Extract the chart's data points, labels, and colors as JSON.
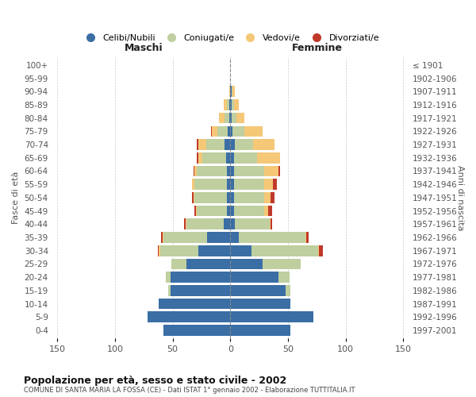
{
  "age_groups": [
    "100+",
    "95-99",
    "90-94",
    "85-89",
    "80-84",
    "75-79",
    "70-74",
    "65-69",
    "60-64",
    "55-59",
    "50-54",
    "45-49",
    "40-44",
    "35-39",
    "30-34",
    "25-29",
    "20-24",
    "15-19",
    "10-14",
    "5-9",
    "0-4"
  ],
  "birth_years": [
    "≤ 1901",
    "1902-1906",
    "1907-1911",
    "1912-1916",
    "1917-1921",
    "1922-1926",
    "1927-1931",
    "1932-1936",
    "1937-1941",
    "1942-1946",
    "1947-1951",
    "1952-1956",
    "1957-1961",
    "1962-1966",
    "1967-1971",
    "1972-1976",
    "1977-1981",
    "1982-1986",
    "1987-1991",
    "1992-1996",
    "1997-2001"
  ],
  "maschi_celibi": [
    0,
    0,
    0,
    1,
    1,
    2,
    5,
    4,
    3,
    3,
    3,
    3,
    6,
    20,
    28,
    38,
    52,
    52,
    62,
    72,
    58
  ],
  "maschi_coniugati": [
    0,
    0,
    0,
    2,
    4,
    9,
    16,
    20,
    26,
    28,
    28,
    26,
    32,
    38,
    33,
    13,
    4,
    2,
    0,
    0,
    0
  ],
  "maschi_vedovi": [
    0,
    0,
    1,
    3,
    5,
    5,
    7,
    4,
    2,
    2,
    1,
    1,
    1,
    1,
    1,
    0,
    0,
    0,
    0,
    0,
    0
  ],
  "maschi_divorziati": [
    0,
    0,
    0,
    0,
    0,
    1,
    1,
    1,
    1,
    0,
    1,
    1,
    1,
    1,
    1,
    0,
    0,
    0,
    0,
    0,
    0
  ],
  "femmine_nubili": [
    0,
    0,
    1,
    1,
    1,
    2,
    4,
    3,
    3,
    3,
    3,
    3,
    4,
    7,
    18,
    28,
    42,
    48,
    52,
    72,
    52
  ],
  "femmine_coniugate": [
    0,
    0,
    1,
    2,
    4,
    10,
    16,
    20,
    26,
    26,
    26,
    26,
    30,
    58,
    58,
    33,
    9,
    4,
    0,
    0,
    0
  ],
  "femmine_vedove": [
    0,
    0,
    2,
    4,
    7,
    16,
    18,
    20,
    13,
    8,
    6,
    4,
    1,
    1,
    1,
    0,
    0,
    0,
    0,
    0,
    0
  ],
  "femmine_divorziate": [
    0,
    0,
    0,
    0,
    0,
    0,
    0,
    0,
    1,
    3,
    3,
    3,
    1,
    2,
    3,
    0,
    0,
    0,
    0,
    0,
    0
  ],
  "color_celibi": "#3A6EA5",
  "color_coniugati": "#BFCFA0",
  "color_vedovi": "#F5C878",
  "color_divorziati": "#C0392B",
  "xlim": 155,
  "title": "Popolazione per età, sesso e stato civile - 2002",
  "subtitle": "COMUNE DI SANTA MARIA LA FOSSA (CE) - Dati ISTAT 1° gennaio 2002 - Elaborazione TUTTITALIA.IT",
  "ylabel_left": "Fasce di età",
  "ylabel_right": "Anni di nascita",
  "label_maschi": "Maschi",
  "label_femmine": "Femmine",
  "legend_labels": [
    "Celibi/Nubili",
    "Coniugati/e",
    "Vedovi/e",
    "Divorziati/e"
  ],
  "bg_color": "#FFFFFF",
  "grid_color": "#CCCCCC"
}
